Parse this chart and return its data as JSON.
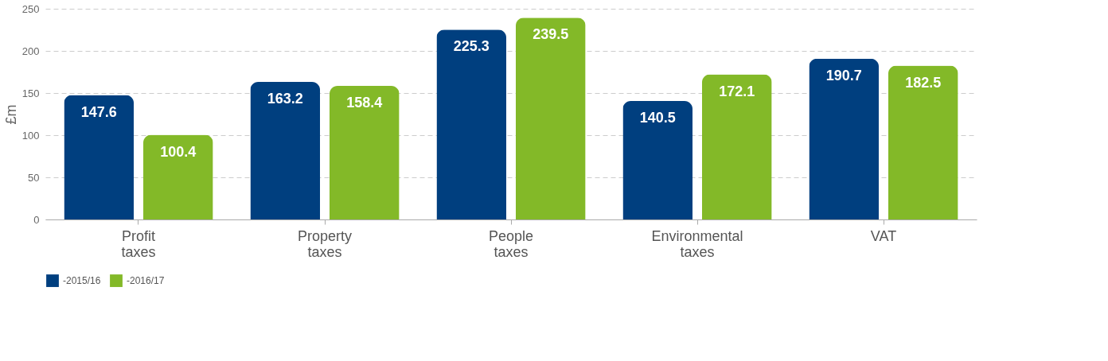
{
  "chart_data": {
    "type": "bar",
    "ylabel": "£m",
    "categories": [
      "Profit taxes",
      "Property taxes",
      "People taxes",
      "Environmental taxes",
      "VAT"
    ],
    "series": [
      {
        "name": "-2015/16",
        "color": "#003f7f",
        "values": [
          147.6,
          163.2,
          225.3,
          140.5,
          190.7
        ]
      },
      {
        "name": "-2016/17",
        "color": "#83b928",
        "values": [
          100.4,
          158.4,
          239.5,
          172.1,
          182.5
        ]
      }
    ],
    "ylim": [
      0,
      250
    ],
    "yticks": [
      0,
      50,
      100,
      150,
      200,
      250
    ],
    "grid": "y",
    "legend": "bottom",
    "data_labels": true
  }
}
